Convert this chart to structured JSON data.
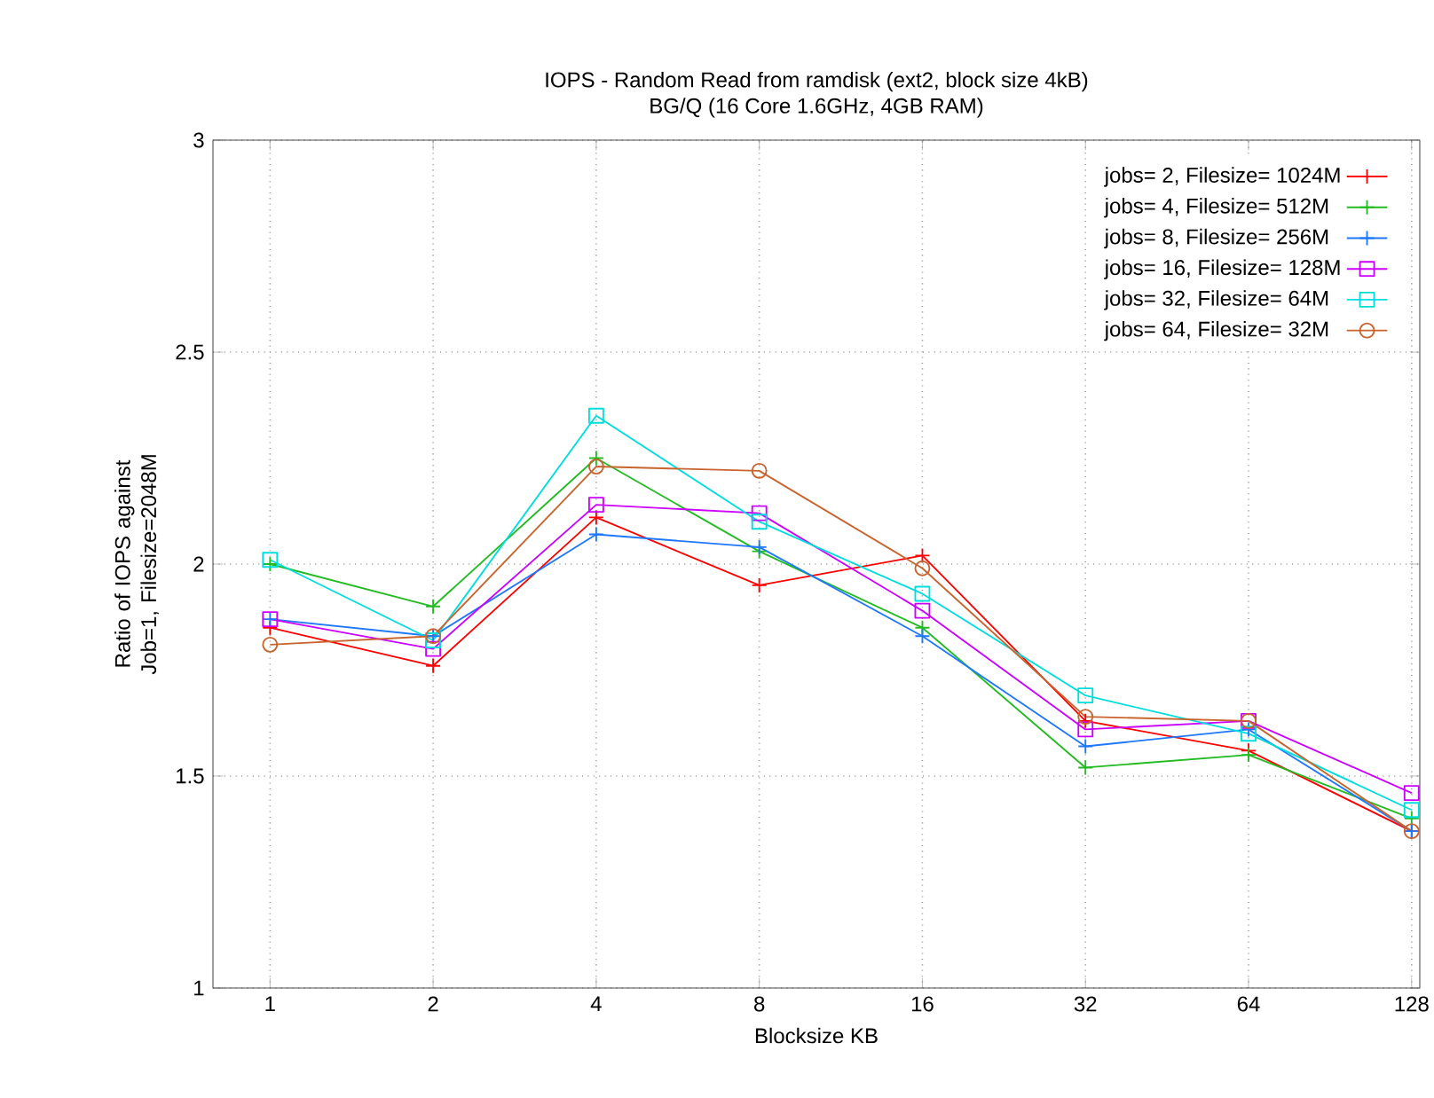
{
  "chart_data": {
    "type": "line",
    "title": "IOPS - Random Read from ramdisk (ext2, block size 4kB)",
    "subtitle": "BG/Q (16 Core 1.6GHz, 4GB RAM)",
    "xlabel": "Blocksize KB",
    "ylabel": "Ratio of IOPS against Job=1, Filesize=2048M",
    "categories": [
      "1",
      "2",
      "4",
      "8",
      "16",
      "32",
      "64",
      "128"
    ],
    "ylim": [
      1,
      3
    ],
    "yticks": [
      1,
      1.5,
      2,
      2.5,
      3
    ],
    "grid": true,
    "legend": "top right",
    "line_style": "solid",
    "series": [
      {
        "name": "jobs=  2,  Filesize= 1024M",
        "color": "#ff0000",
        "marker": "cross",
        "values": [
          1.85,
          1.76,
          2.11,
          1.95,
          2.02,
          1.63,
          1.56,
          1.37
        ]
      },
      {
        "name": "jobs=  4,  Filesize= 512M",
        "color": "#22bb22",
        "marker": "cross",
        "values": [
          2.0,
          1.9,
          2.25,
          2.03,
          1.85,
          1.52,
          1.55,
          1.4
        ]
      },
      {
        "name": "jobs=  8,  Filesize= 256M",
        "color": "#1e78ff",
        "marker": "cross",
        "values": [
          1.87,
          1.83,
          2.07,
          2.04,
          1.83,
          1.57,
          1.61,
          1.37
        ]
      },
      {
        "name": "jobs= 16,  Filesize=  128M",
        "color": "#cc00ff",
        "marker": "square",
        "values": [
          1.87,
          1.8,
          2.14,
          2.12,
          1.89,
          1.61,
          1.63,
          1.46
        ]
      },
      {
        "name": "jobs= 32,  Filesize=  64M",
        "color": "#00dddd",
        "marker": "square",
        "values": [
          2.01,
          1.82,
          2.35,
          2.1,
          1.93,
          1.69,
          1.6,
          1.42
        ]
      },
      {
        "name": "jobs= 64,  Filesize=  32M",
        "color": "#c8642d",
        "marker": "circle",
        "values": [
          1.81,
          1.83,
          2.23,
          2.22,
          1.99,
          1.64,
          1.63,
          1.37
        ]
      }
    ]
  }
}
